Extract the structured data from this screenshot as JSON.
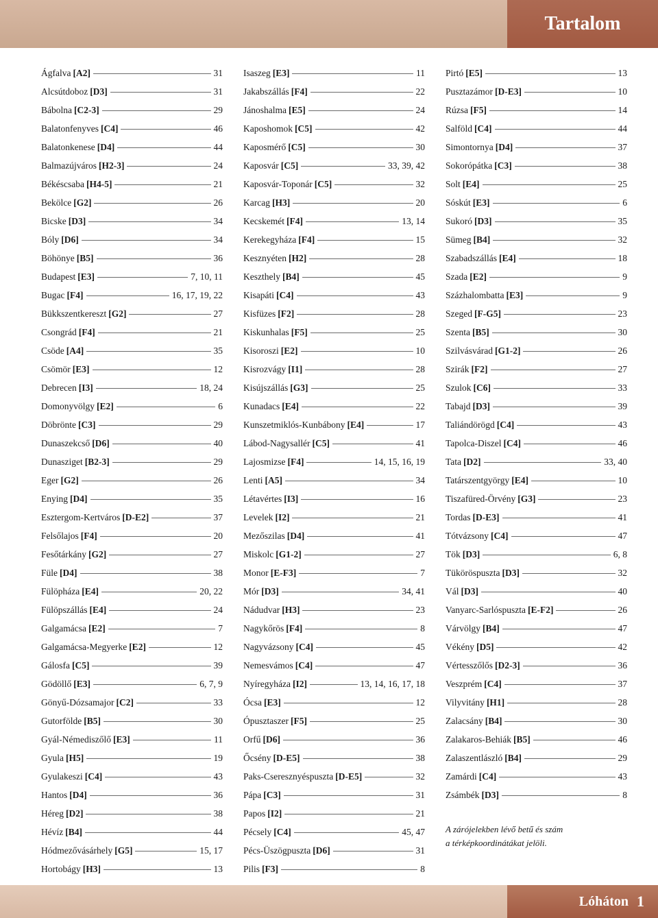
{
  "header": {
    "title": "Tartalom"
  },
  "footer": {
    "label": "Lóháton",
    "page": "1"
  },
  "note_line1": "A zárójelekben lévő betű és szám",
  "note_line2": "a térképkoordinátákat jelöli.",
  "columns": [
    [
      {
        "name": "Ágfalva",
        "coord": "[A2]",
        "pages": "31"
      },
      {
        "name": "Alcsútdoboz",
        "coord": "[D3]",
        "pages": "31"
      },
      {
        "name": "Bábolna",
        "coord": "[C2-3]",
        "pages": "29"
      },
      {
        "name": "Balatonfenyves",
        "coord": "[C4]",
        "pages": "46"
      },
      {
        "name": "Balatonkenese",
        "coord": "[D4]",
        "pages": "44"
      },
      {
        "name": "Balmazújváros",
        "coord": "[H2-3]",
        "pages": "24"
      },
      {
        "name": "Békéscsaba",
        "coord": "[H4-5]",
        "pages": "21"
      },
      {
        "name": "Bekölce",
        "coord": "[G2]",
        "pages": "26"
      },
      {
        "name": "Bicske",
        "coord": "[D3]",
        "pages": "34"
      },
      {
        "name": "Bóly",
        "coord": "[D6]",
        "pages": "34"
      },
      {
        "name": "Böhönye",
        "coord": "[B5]",
        "pages": "36"
      },
      {
        "name": "Budapest",
        "coord": "[E3]",
        "pages": "7, 10, 11"
      },
      {
        "name": "Bugac",
        "coord": "[F4]",
        "pages": "16, 17, 19, 22"
      },
      {
        "name": "Bükkszentkereszt",
        "coord": "[G2]",
        "pages": "27"
      },
      {
        "name": "Csongrád",
        "coord": "[F4]",
        "pages": "21"
      },
      {
        "name": "Csöde",
        "coord": "[A4]",
        "pages": "35"
      },
      {
        "name": "Csömör",
        "coord": "[E3]",
        "pages": "12"
      },
      {
        "name": "Debrecen",
        "coord": "[I3]",
        "pages": "18, 24"
      },
      {
        "name": "Domonyvölgy",
        "coord": "[E2]",
        "pages": "6"
      },
      {
        "name": "Döbrönte",
        "coord": "[C3]",
        "pages": "29"
      },
      {
        "name": "Dunaszekcső",
        "coord": "[D6]",
        "pages": "40"
      },
      {
        "name": "Dunasziget",
        "coord": "[B2-3]",
        "pages": "29"
      },
      {
        "name": "Eger",
        "coord": "[G2]",
        "pages": "26"
      },
      {
        "name": "Enying",
        "coord": "[D4]",
        "pages": "35"
      },
      {
        "name": "Esztergom-Kertváros",
        "coord": "[D-E2]",
        "pages": "37"
      },
      {
        "name": "Felsőlajos",
        "coord": "[F4]",
        "pages": "20"
      },
      {
        "name": "Fesőtárkány",
        "coord": "[G2]",
        "pages": "27"
      },
      {
        "name": "Füle",
        "coord": "[D4]",
        "pages": "38"
      },
      {
        "name": "Fülöpháza",
        "coord": "[E4]",
        "pages": "20, 22"
      },
      {
        "name": "Fülöpszállás",
        "coord": "[E4]",
        "pages": "24"
      },
      {
        "name": "Galgamácsa",
        "coord": "[E2]",
        "pages": "7"
      },
      {
        "name": "Galgamácsa-Megyerke",
        "coord": "[E2]",
        "pages": "12"
      },
      {
        "name": "Gálosfa",
        "coord": "[C5]",
        "pages": "39"
      },
      {
        "name": "Gödöllő",
        "coord": "[E3]",
        "pages": "6, 7, 9"
      },
      {
        "name": "Gönyű-Dózsamajor",
        "coord": "[C2]",
        "pages": "33"
      },
      {
        "name": "Gutorfölde",
        "coord": "[B5]",
        "pages": "30"
      },
      {
        "name": "Gyál-Némediszőlő",
        "coord": "[E3]",
        "pages": "11"
      },
      {
        "name": "Gyula",
        "coord": "[H5]",
        "pages": "19"
      },
      {
        "name": "Gyulakeszi",
        "coord": "[C4]",
        "pages": "43"
      },
      {
        "name": "Hantos",
        "coord": "[D4]",
        "pages": "36"
      },
      {
        "name": "Héreg",
        "coord": "[D2]",
        "pages": "38"
      },
      {
        "name": "Hévíz",
        "coord": "[B4]",
        "pages": "44"
      },
      {
        "name": "Hódmezővásárhely",
        "coord": "[G5]",
        "pages": "15, 17"
      },
      {
        "name": "Hortobágy",
        "coord": "[H3]",
        "pages": "13"
      }
    ],
    [
      {
        "name": "Isaszeg",
        "coord": "[E3]",
        "pages": "11"
      },
      {
        "name": "Jakabszállás",
        "coord": "[F4]",
        "pages": "22"
      },
      {
        "name": "Jánoshalma",
        "coord": "[E5]",
        "pages": "24"
      },
      {
        "name": "Kaposhomok",
        "coord": "[C5]",
        "pages": "42"
      },
      {
        "name": "Kaposmérő",
        "coord": "[C5]",
        "pages": "30"
      },
      {
        "name": "Kaposvár",
        "coord": "[C5]",
        "pages": "33, 39, 42"
      },
      {
        "name": "Kaposvár-Toponár",
        "coord": "[C5]",
        "pages": "32"
      },
      {
        "name": "Karcag",
        "coord": "[H3]",
        "pages": "20"
      },
      {
        "name": "Kecskemét",
        "coord": "[F4]",
        "pages": "13, 14"
      },
      {
        "name": "Kerekegyháza",
        "coord": "[F4]",
        "pages": "15"
      },
      {
        "name": "Kesznyéten",
        "coord": "[H2]",
        "pages": "28"
      },
      {
        "name": "Keszthely",
        "coord": "[B4]",
        "pages": "45"
      },
      {
        "name": "Kisapáti",
        "coord": "[C4]",
        "pages": "43"
      },
      {
        "name": "Kisfüzes",
        "coord": "[F2]",
        "pages": "28"
      },
      {
        "name": "Kiskunhalas",
        "coord": "[F5]",
        "pages": "25"
      },
      {
        "name": "Kisoroszi",
        "coord": "[E2]",
        "pages": "10"
      },
      {
        "name": "Kisrozvágy",
        "coord": "[I1]",
        "pages": "28"
      },
      {
        "name": "Kisújszállás",
        "coord": "[G3]",
        "pages": "25"
      },
      {
        "name": "Kunadacs",
        "coord": "[E4]",
        "pages": "22"
      },
      {
        "name": "Kunszetmiklós-Kunbábony",
        "coord": "[E4]",
        "pages": "17"
      },
      {
        "name": "Lábod-Nagysallér",
        "coord": "[C5]",
        "pages": "41"
      },
      {
        "name": "Lajosmizse",
        "coord": "[F4]",
        "pages": "14, 15, 16, 19"
      },
      {
        "name": "Lenti",
        "coord": "[A5]",
        "pages": "34"
      },
      {
        "name": "Létavértes",
        "coord": "[I3]",
        "pages": "16"
      },
      {
        "name": "Levelek",
        "coord": "[I2]",
        "pages": "21"
      },
      {
        "name": "Mezőszilas",
        "coord": "[D4]",
        "pages": "41"
      },
      {
        "name": "Miskolc",
        "coord": "[G1-2]",
        "pages": "27"
      },
      {
        "name": "Monor",
        "coord": "[E-F3]",
        "pages": "7"
      },
      {
        "name": "Mór",
        "coord": "[D3]",
        "pages": "34, 41"
      },
      {
        "name": "Nádudvar",
        "coord": "[H3]",
        "pages": "23"
      },
      {
        "name": "Nagykőrös",
        "coord": "[F4]",
        "pages": "8"
      },
      {
        "name": "Nagyvázsony",
        "coord": "[C4]",
        "pages": "45"
      },
      {
        "name": "Nemesvámos",
        "coord": "[C4]",
        "pages": "47"
      },
      {
        "name": "Nyíregyháza",
        "coord": "[I2]",
        "pages": "13, 14, 16, 17, 18"
      },
      {
        "name": "Ócsa",
        "coord": "[E3]",
        "pages": "12"
      },
      {
        "name": "Ópusztaszer",
        "coord": "[F5]",
        "pages": "25"
      },
      {
        "name": "Orfű",
        "coord": "[D6]",
        "pages": "36"
      },
      {
        "name": "Őcsény",
        "coord": "[D-E5]",
        "pages": "38"
      },
      {
        "name": "Paks-Cseresznyéspuszta",
        "coord": "[D-E5]",
        "pages": "32"
      },
      {
        "name": "Pápa",
        "coord": "[C3]",
        "pages": "31"
      },
      {
        "name": "Papos",
        "coord": "[I2]",
        "pages": "21"
      },
      {
        "name": "Pécsely",
        "coord": "[C4]",
        "pages": "45, 47"
      },
      {
        "name": "Pécs-Üszögpuszta",
        "coord": "[D6]",
        "pages": "31"
      },
      {
        "name": "Pilis",
        "coord": "[F3]",
        "pages": "8"
      }
    ],
    [
      {
        "name": "Pirtó",
        "coord": "[E5]",
        "pages": "13"
      },
      {
        "name": "Pusztazámor",
        "coord": "[D-E3]",
        "pages": "10"
      },
      {
        "name": "Rúzsa",
        "coord": "[F5]",
        "pages": "14"
      },
      {
        "name": "Salföld",
        "coord": "[C4]",
        "pages": "44"
      },
      {
        "name": "Simontornya",
        "coord": "[D4]",
        "pages": "37"
      },
      {
        "name": "Sokorópátka",
        "coord": "[C3]",
        "pages": "38"
      },
      {
        "name": "Solt",
        "coord": "[E4]",
        "pages": "25"
      },
      {
        "name": "Sóskút",
        "coord": "[E3]",
        "pages": "6"
      },
      {
        "name": "Sukoró",
        "coord": "[D3]",
        "pages": "35"
      },
      {
        "name": "Sümeg",
        "coord": "[B4]",
        "pages": "32"
      },
      {
        "name": "Szabadszállás",
        "coord": "[E4]",
        "pages": "18"
      },
      {
        "name": "Szada",
        "coord": "[E2]",
        "pages": "9"
      },
      {
        "name": "Százhalombatta",
        "coord": "[E3]",
        "pages": "9"
      },
      {
        "name": "Szeged",
        "coord": "[F-G5]",
        "pages": "23"
      },
      {
        "name": "Szenta",
        "coord": "[B5]",
        "pages": "30"
      },
      {
        "name": "Szilvásvárad",
        "coord": "[G1-2]",
        "pages": "26"
      },
      {
        "name": "Szirák",
        "coord": "[F2]",
        "pages": "27"
      },
      {
        "name": "Szulok",
        "coord": "[C6]",
        "pages": "33"
      },
      {
        "name": "Tabajd",
        "coord": "[D3]",
        "pages": "39"
      },
      {
        "name": "Taliándörögd",
        "coord": "[C4]",
        "pages": "43"
      },
      {
        "name": "Tapolca-Diszel",
        "coord": "[C4]",
        "pages": "46"
      },
      {
        "name": "Tata",
        "coord": "[D2]",
        "pages": "33, 40"
      },
      {
        "name": "Tatárszentgyörgy",
        "coord": "[E4]",
        "pages": "10"
      },
      {
        "name": "Tiszafüred-Örvény",
        "coord": "[G3]",
        "pages": "23"
      },
      {
        "name": "Tordas",
        "coord": "[D-E3]",
        "pages": "41"
      },
      {
        "name": "Tótvázsony",
        "coord": "[C4]",
        "pages": "47"
      },
      {
        "name": "Tök",
        "coord": "[D3]",
        "pages": "6, 8"
      },
      {
        "name": "Tüköröspuszta",
        "coord": "[D3]",
        "pages": "32"
      },
      {
        "name": "Vál",
        "coord": "[D3]",
        "pages": "40"
      },
      {
        "name": "Vanyarc-Sarlóspuszta",
        "coord": "[E-F2]",
        "pages": "26"
      },
      {
        "name": "Várvölgy",
        "coord": "[B4]",
        "pages": "47"
      },
      {
        "name": "Vékény",
        "coord": "[D5]",
        "pages": "42"
      },
      {
        "name": "Vértesszőlős",
        "coord": "[D2-3]",
        "pages": "36"
      },
      {
        "name": "Veszprém",
        "coord": "[C4]",
        "pages": "37"
      },
      {
        "name": "Vilyvitány",
        "coord": "[H1]",
        "pages": "28"
      },
      {
        "name": "Zalacsány",
        "coord": "[B4]",
        "pages": "30"
      },
      {
        "name": "Zalakaros-Behiák",
        "coord": "[B5]",
        "pages": "46"
      },
      {
        "name": "Zalaszentlászló",
        "coord": "[B4]",
        "pages": "29"
      },
      {
        "name": "Zamárdi",
        "coord": "[C4]",
        "pages": "43"
      },
      {
        "name": "Zsámbék",
        "coord": "[D3]",
        "pages": "8"
      }
    ]
  ]
}
